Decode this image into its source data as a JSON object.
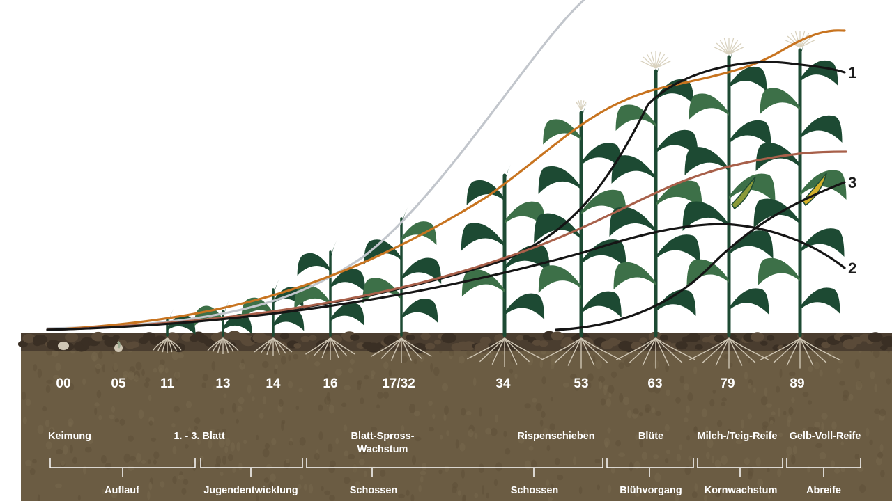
{
  "stages": [
    "00",
    "05",
    "11",
    "13",
    "14",
    "16",
    "17/32",
    "34",
    "53",
    "63",
    "79",
    "89"
  ],
  "phases": [
    "Keimung",
    "1. - 3. Blatt",
    "Blatt-Spross-\nWachstum",
    "Rispenschieben",
    "Blüte",
    "Milch-/Teig-Reife",
    "Gelb-Voll-Reife"
  ],
  "periods": [
    "Auflauf",
    "Jugendentwicklung",
    "Schossen",
    "Schossen",
    "Blühvorgang",
    "Kornwachstum",
    "Abreife"
  ],
  "curve_labels": [
    "1",
    "2",
    "3"
  ],
  "colors": {
    "soil_surface": "#4a3d2f",
    "soil": "#6b5c43",
    "plant": "#1d4a33",
    "plant_light": "#3d7048",
    "root": "#cfc6b4",
    "tassel": "#d9d2bf",
    "cob": "#d4b12a",
    "curve_grey": "#c2c6cc",
    "curve_orange": "#c87420",
    "curve_brown": "#a8604a",
    "curve_black": "#151515"
  }
}
